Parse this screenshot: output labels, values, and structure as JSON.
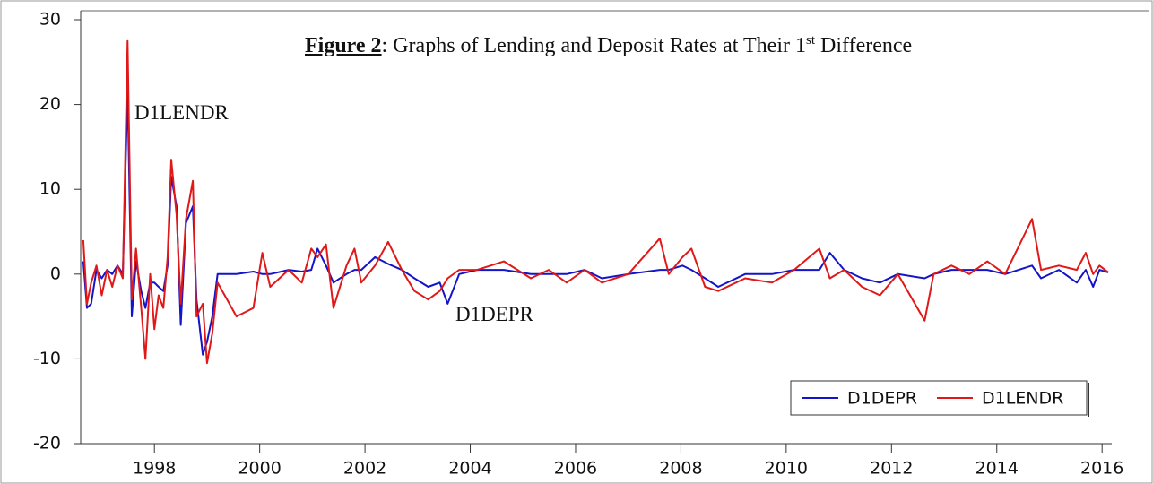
{
  "chart_data": {
    "type": "line",
    "title": {
      "label": "Figure 2",
      "text": ": Graphs of Lending and Deposit Rates at Their 1",
      "superscript": "st",
      "end": " Difference"
    },
    "annotations": [
      "D1LENDR",
      "D1DEPR"
    ],
    "x": [
      1996.65,
      1996.72,
      1996.8,
      1996.9,
      1997.0,
      1997.1,
      1997.2,
      1997.3,
      1997.4,
      1997.49,
      1997.57,
      1997.65,
      1997.75,
      1997.83,
      1997.92,
      1998.0,
      1998.08,
      1998.17,
      1998.25,
      1998.32,
      1998.42,
      1998.5,
      1998.6,
      1998.73,
      1998.8,
      1998.92,
      1999.0,
      1999.1,
      1999.2,
      1999.56,
      1999.88,
      2000.05,
      2000.2,
      2000.55,
      2000.8,
      2000.98,
      2001.1,
      2001.26,
      2001.4,
      2001.65,
      2001.8,
      2001.93,
      2002.19,
      2002.44,
      2002.7,
      2002.94,
      2003.2,
      2003.42,
      2003.57,
      2003.79,
      2004.13,
      2004.64,
      2005.15,
      2005.49,
      2005.83,
      2006.17,
      2006.5,
      2007.0,
      2007.6,
      2007.77,
      2008.03,
      2008.2,
      2008.46,
      2008.71,
      2009.22,
      2009.73,
      2010.15,
      2010.63,
      2010.83,
      2011.1,
      2011.44,
      2011.78,
      2012.12,
      2012.63,
      2012.8,
      2013.14,
      2013.48,
      2013.82,
      2014.16,
      2014.67,
      2014.84,
      2015.18,
      2015.52,
      2015.69,
      2015.83,
      2015.95,
      2016.12
    ],
    "series": [
      {
        "name": "D1DEPR",
        "color": "#1414c8",
        "values": [
          1.5,
          -4,
          -3.5,
          0.5,
          -0.5,
          0.5,
          0,
          1,
          0,
          22,
          -5,
          1.5,
          -2,
          -4,
          -1,
          -1,
          -1.5,
          -2,
          1,
          11.5,
          8,
          -6,
          6,
          8,
          -3,
          -9.5,
          -8,
          -5,
          0,
          0,
          0.3,
          0,
          0,
          0.5,
          0.3,
          0.5,
          3,
          1,
          -1,
          0,
          0.5,
          0.5,
          2,
          1.2,
          0.5,
          -0.5,
          -1.5,
          -1,
          -3.5,
          0,
          0.5,
          0.5,
          0,
          0,
          0,
          0.5,
          -0.5,
          0,
          0.5,
          0.5,
          1,
          0.5,
          -0.5,
          -1.5,
          0,
          0,
          0.5,
          0.5,
          2.5,
          0.5,
          -0.5,
          -1,
          0,
          -0.5,
          0,
          0.5,
          0.5,
          0.5,
          0,
          1,
          -0.5,
          0.5,
          -1,
          0.5,
          -1.5,
          0.5,
          0.2
        ]
      },
      {
        "name": "D1LENDR",
        "color": "#e01818",
        "values": [
          4,
          -3.5,
          -1,
          1,
          -2.5,
          0.5,
          -1.5,
          1,
          -0.5,
          27.5,
          -3,
          3,
          -4,
          -10,
          0,
          -6.5,
          -2.5,
          -4,
          2,
          13.5,
          7,
          -3.5,
          6.5,
          11,
          -5,
          -3.5,
          -10.5,
          -7,
          -1,
          -5,
          -4,
          2.5,
          -1.5,
          0.5,
          -1,
          3,
          2,
          3.5,
          -4,
          1,
          3,
          -1,
          1,
          3.8,
          0.5,
          -2,
          -3,
          -2,
          -0.5,
          0.5,
          0.5,
          1.5,
          -0.5,
          0.5,
          -1,
          0.5,
          -1,
          0,
          4.2,
          0,
          2,
          3,
          -1.5,
          -2,
          -0.5,
          -1,
          0.5,
          3,
          -0.5,
          0.5,
          -1.5,
          -2.5,
          0,
          -5.5,
          0,
          1,
          0,
          1.5,
          0,
          6.5,
          0.5,
          1,
          0.5,
          2.5,
          0,
          1,
          0.2
        ]
      }
    ],
    "xlim": [
      1996.6,
      2016.15
    ],
    "xticks": [
      1998,
      2000,
      2002,
      2004,
      2006,
      2008,
      2010,
      2012,
      2014,
      2016
    ],
    "ylim": [
      -20,
      30
    ],
    "yticks": [
      -20,
      -10,
      0,
      10,
      20,
      30
    ],
    "legend": "bottom-right"
  }
}
